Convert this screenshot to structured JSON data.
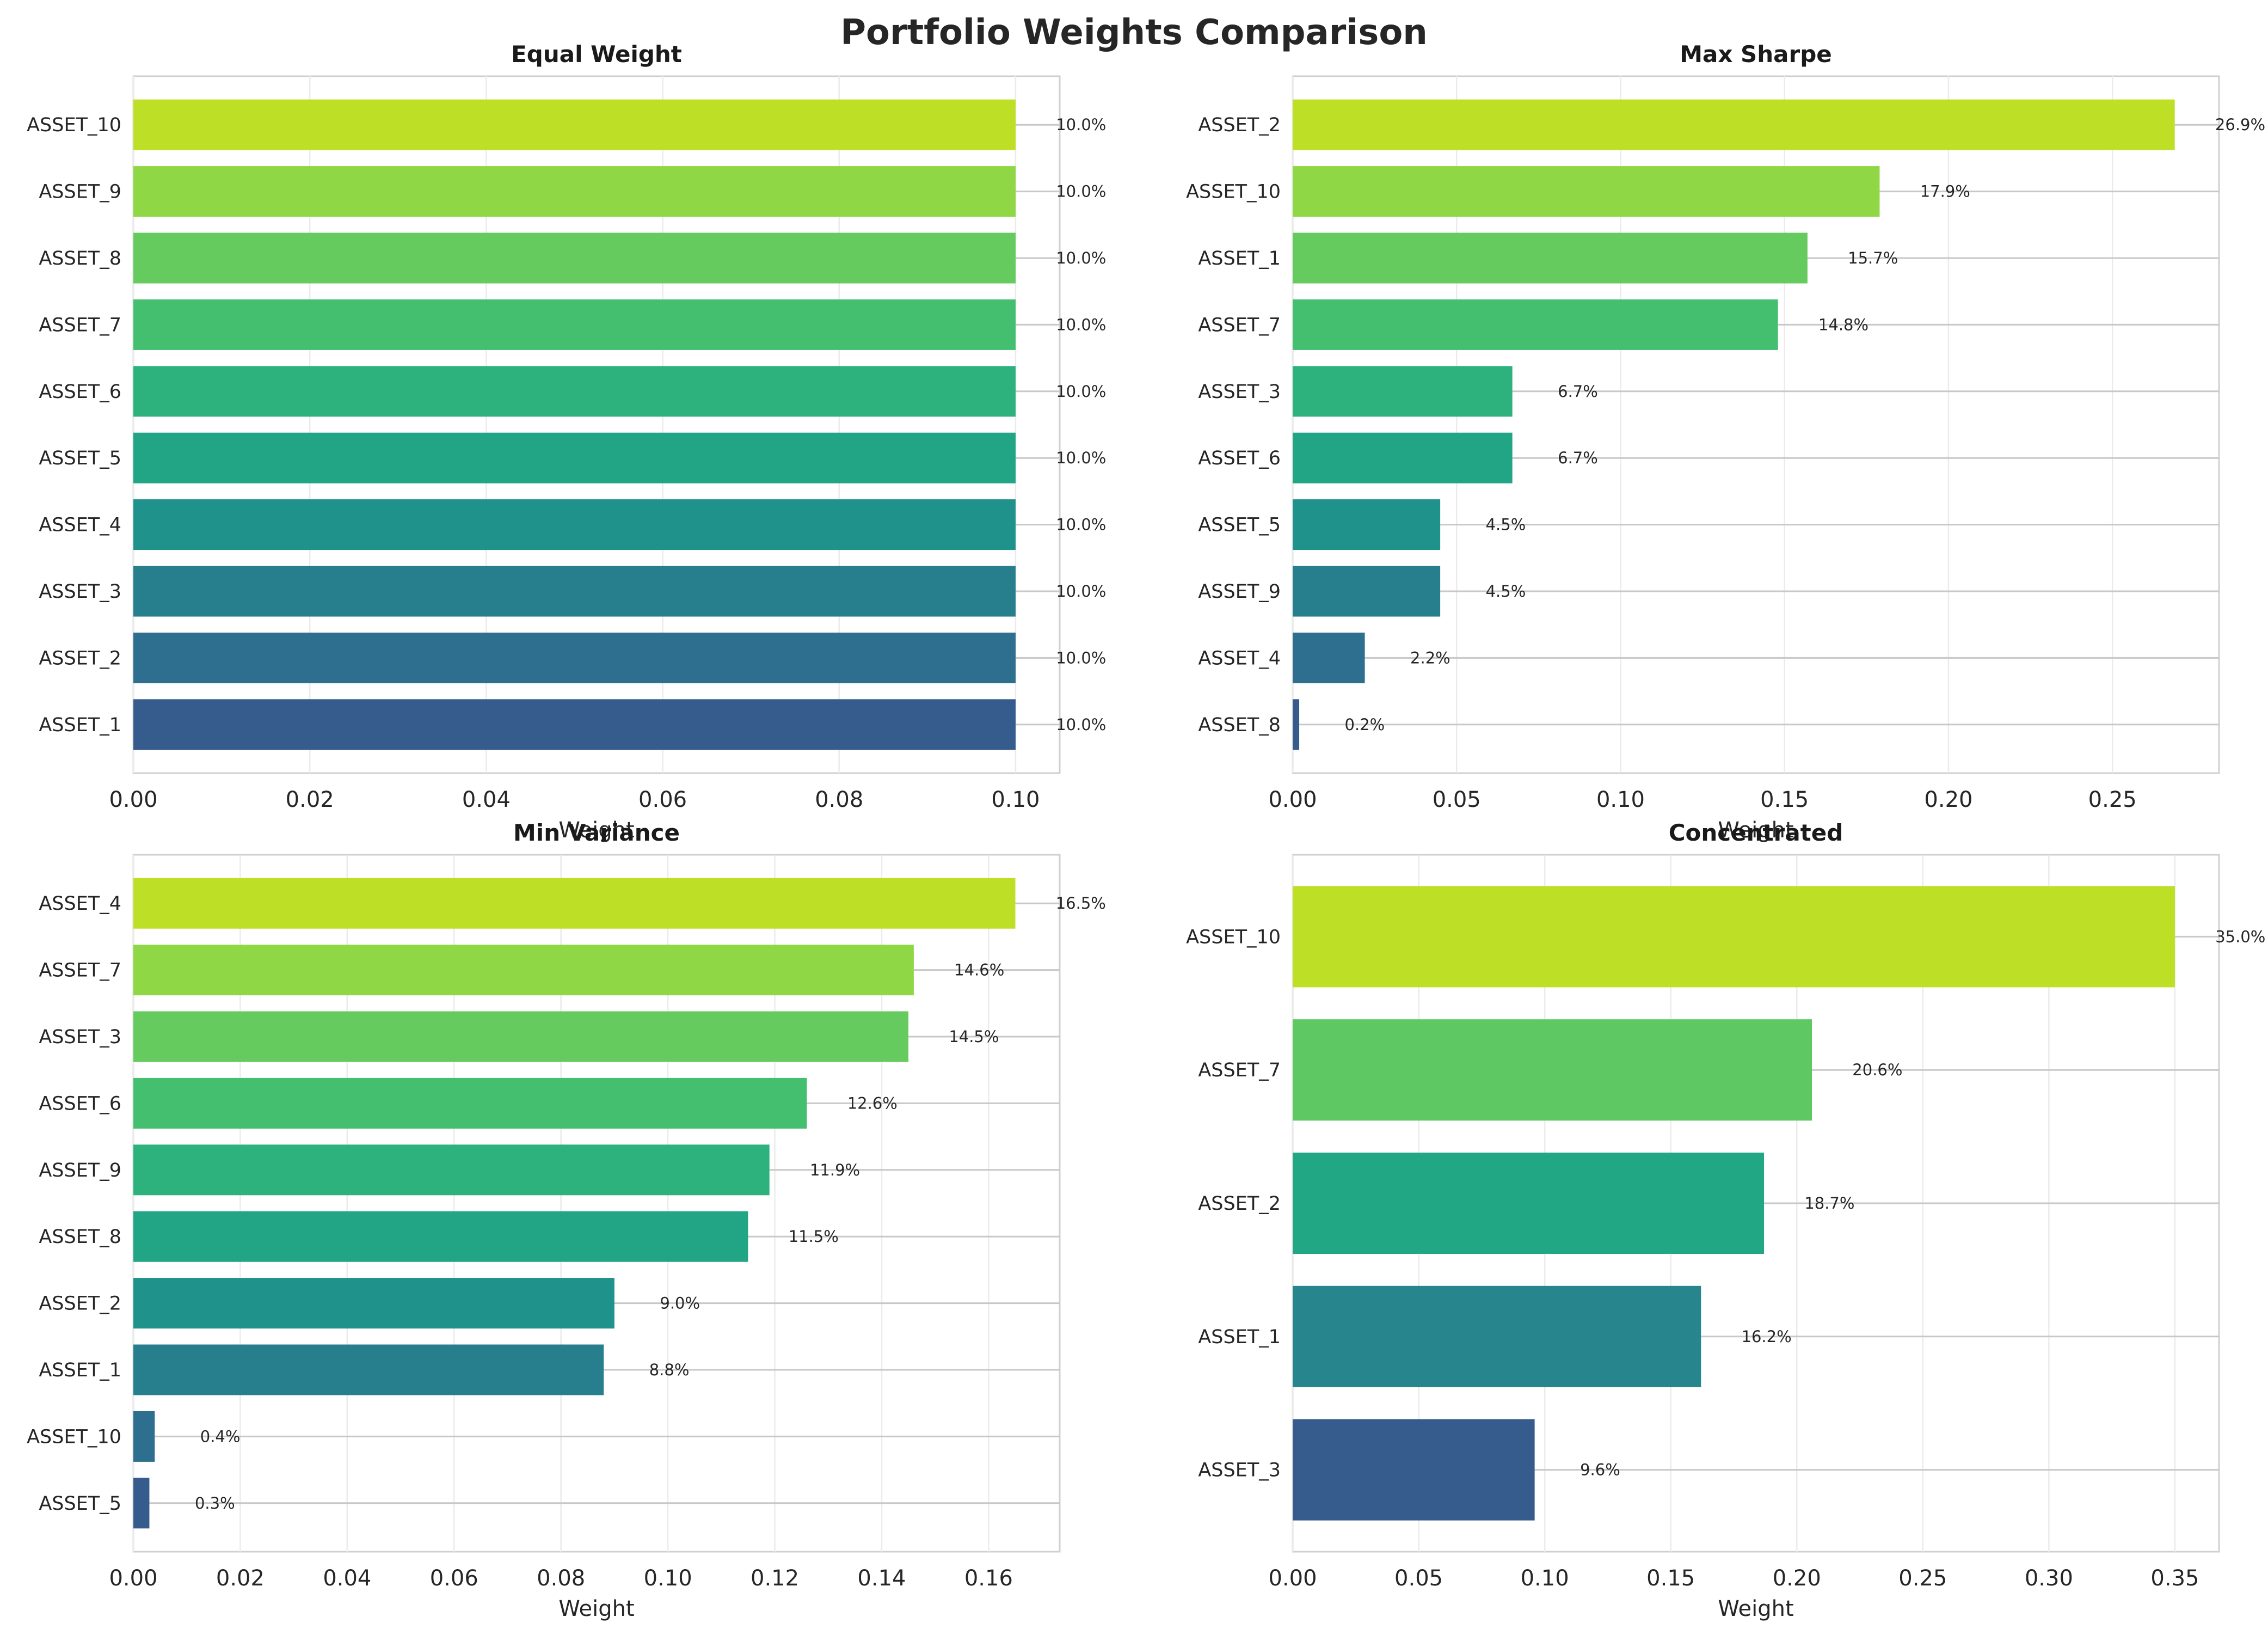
{
  "figure": {
    "title": "Portfolio Weights Comparison"
  },
  "chart_data": [
    {
      "type": "bar",
      "orientation": "horizontal",
      "title": "Equal Weight",
      "xlabel": "Weight",
      "ylabel": "",
      "xlim": [
        0,
        0.105
      ],
      "xticks": [
        "0.00",
        "0.02",
        "0.04",
        "0.06",
        "0.08",
        "0.10"
      ],
      "xtick_values": [
        0,
        0.02,
        0.04,
        0.06,
        0.08,
        0.1
      ],
      "categories": [
        "ASSET_10",
        "ASSET_9",
        "ASSET_8",
        "ASSET_7",
        "ASSET_6",
        "ASSET_5",
        "ASSET_4",
        "ASSET_3",
        "ASSET_2",
        "ASSET_1"
      ],
      "values": [
        0.1,
        0.1,
        0.1,
        0.1,
        0.1,
        0.1,
        0.1,
        0.1,
        0.1,
        0.1
      ],
      "labels": [
        "10.0%",
        "10.0%",
        "10.0%",
        "10.0%",
        "10.0%",
        "10.0%",
        "10.0%",
        "10.0%",
        "10.0%",
        "10.0%"
      ],
      "colors": [
        "#bddf26",
        "#8fd744",
        "#65cb5e",
        "#44bf70",
        "#2db27d",
        "#21a585",
        "#20928c",
        "#277f8e",
        "#2e6e8e",
        "#365c8d"
      ],
      "grid": true
    },
    {
      "type": "bar",
      "orientation": "horizontal",
      "title": "Max Sharpe",
      "xlabel": "Weight",
      "ylabel": "",
      "xlim": [
        0,
        0.2825
      ],
      "xticks": [
        "0.00",
        "0.05",
        "0.10",
        "0.15",
        "0.20",
        "0.25"
      ],
      "xtick_values": [
        0,
        0.05,
        0.1,
        0.15,
        0.2,
        0.25
      ],
      "categories": [
        "ASSET_2",
        "ASSET_10",
        "ASSET_1",
        "ASSET_7",
        "ASSET_3",
        "ASSET_6",
        "ASSET_5",
        "ASSET_9",
        "ASSET_4",
        "ASSET_8"
      ],
      "values": [
        0.269,
        0.179,
        0.157,
        0.148,
        0.067,
        0.067,
        0.045,
        0.045,
        0.022,
        0.002
      ],
      "labels": [
        "26.9%",
        "17.9%",
        "15.7%",
        "14.8%",
        "6.7%",
        "6.7%",
        "4.5%",
        "4.5%",
        "2.2%",
        "0.2%"
      ],
      "colors": [
        "#bddf26",
        "#8fd744",
        "#65cb5e",
        "#44bf70",
        "#2db27d",
        "#21a585",
        "#20928c",
        "#277f8e",
        "#2e6e8e",
        "#365c8d"
      ],
      "grid": true
    },
    {
      "type": "bar",
      "orientation": "horizontal",
      "title": "Min Variance",
      "xlabel": "Weight",
      "ylabel": "",
      "xlim": [
        0,
        0.1733
      ],
      "xticks": [
        "0.00",
        "0.02",
        "0.04",
        "0.06",
        "0.08",
        "0.10",
        "0.12",
        "0.14",
        "0.16"
      ],
      "xtick_values": [
        0,
        0.02,
        0.04,
        0.06,
        0.08,
        0.1,
        0.12,
        0.14,
        0.16
      ],
      "categories": [
        "ASSET_4",
        "ASSET_7",
        "ASSET_3",
        "ASSET_6",
        "ASSET_9",
        "ASSET_8",
        "ASSET_2",
        "ASSET_1",
        "ASSET_10",
        "ASSET_5"
      ],
      "values": [
        0.165,
        0.146,
        0.145,
        0.126,
        0.119,
        0.115,
        0.09,
        0.088,
        0.004,
        0.003
      ],
      "labels": [
        "16.5%",
        "14.6%",
        "14.5%",
        "12.6%",
        "11.9%",
        "11.5%",
        "9.0%",
        "8.8%",
        "0.4%",
        "0.3%"
      ],
      "colors": [
        "#bddf26",
        "#8fd744",
        "#65cb5e",
        "#44bf70",
        "#2db27d",
        "#21a585",
        "#20928c",
        "#277f8e",
        "#2e6e8e",
        "#365c8d"
      ],
      "grid": true
    },
    {
      "type": "bar",
      "orientation": "horizontal",
      "title": "Concentrated",
      "xlabel": "Weight",
      "ylabel": "",
      "xlim": [
        0,
        0.3675
      ],
      "xticks": [
        "0.00",
        "0.05",
        "0.10",
        "0.15",
        "0.20",
        "0.25",
        "0.30",
        "0.35"
      ],
      "xtick_values": [
        0,
        0.05,
        0.1,
        0.15,
        0.2,
        0.25,
        0.3,
        0.35
      ],
      "categories": [
        "ASSET_10",
        "ASSET_7",
        "ASSET_2",
        "ASSET_1",
        "ASSET_3"
      ],
      "values": [
        0.35,
        0.206,
        0.187,
        0.162,
        0.096
      ],
      "labels": [
        "35.0%",
        "20.6%",
        "18.7%",
        "16.2%",
        "9.6%"
      ],
      "colors": [
        "#bddf26",
        "#5ec962",
        "#21a784",
        "#27858e",
        "#365c8d"
      ],
      "grid": true
    }
  ]
}
